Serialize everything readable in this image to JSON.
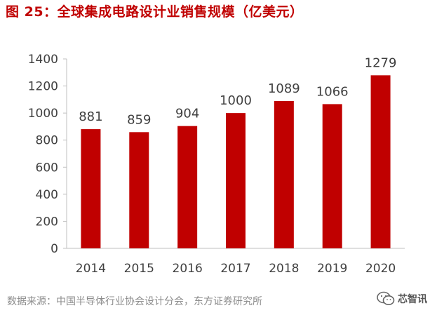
{
  "figure": {
    "title": "图 25：全球集成电路设计业销售规模（亿美元）",
    "source": "数据来源：中国半导体行业协会设计分会，东方证券研究所",
    "watermark": "芯智讯",
    "watermark_icon": "wechat-icon"
  },
  "colors": {
    "bar": "#c00000",
    "title": "#c00000",
    "text": "#404040",
    "axis": "#bfbfbf",
    "source": "#8c8c8c"
  },
  "chart_data": {
    "type": "bar",
    "title": "全球集成电路设计业销售规模（亿美元）",
    "categories": [
      "2014",
      "2015",
      "2016",
      "2017",
      "2018",
      "2019",
      "2020"
    ],
    "values": [
      881,
      859,
      904,
      1000,
      1089,
      1066,
      1279
    ],
    "data_labels": [
      "881",
      "859",
      "904",
      "1000",
      "1089",
      "1066",
      "1279"
    ],
    "xlabel": "",
    "ylabel": "",
    "ylim": [
      0,
      1400
    ],
    "yticks": [
      0,
      200,
      400,
      600,
      800,
      1000,
      1200,
      1400
    ],
    "grid": false,
    "legend": "none"
  }
}
